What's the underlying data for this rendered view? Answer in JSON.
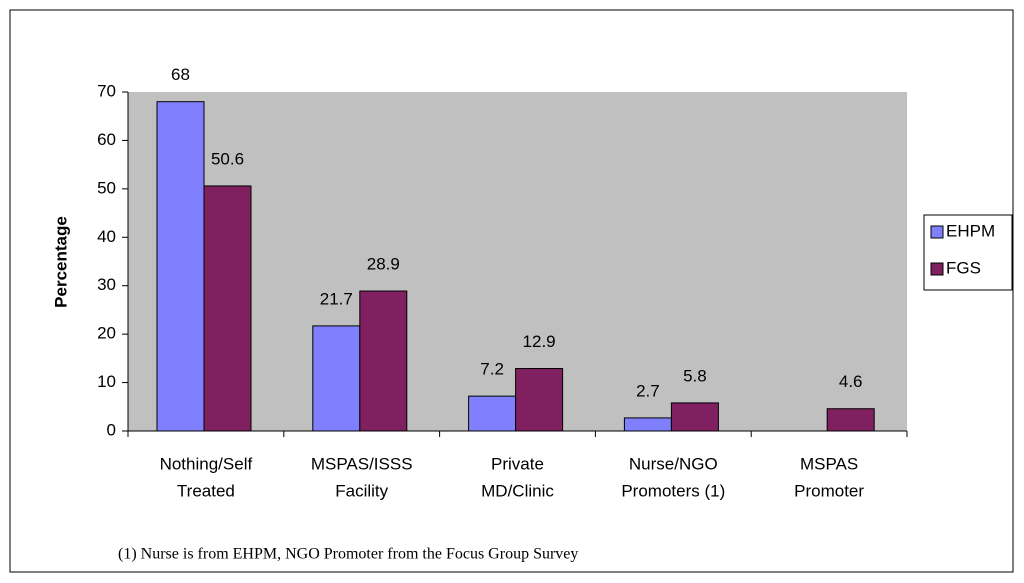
{
  "chart_data": {
    "type": "bar",
    "y_label": "Percentage",
    "categories": [
      [
        "Nothing/Self",
        "Treated"
      ],
      [
        "MSPAS/ISSS",
        "Facility"
      ],
      [
        "Private",
        "MD/Clinic"
      ],
      [
        "Nurse/NGO",
        "Promoters (1)"
      ],
      [
        "MSPAS",
        "Promoter"
      ]
    ],
    "series": [
      {
        "name": "EHPM",
        "color": "#8080ff",
        "values": [
          68,
          21.7,
          7.2,
          2.7,
          null
        ]
      },
      {
        "name": "FGS",
        "color": "#802060",
        "values": [
          50.6,
          28.9,
          12.9,
          5.8,
          4.6
        ]
      }
    ],
    "ylim": [
      0,
      70
    ],
    "yticks": [
      0,
      10,
      20,
      30,
      40,
      50,
      60,
      70
    ],
    "grid": false,
    "legend": "right",
    "footnote": "(1) Nurse is from EHPM, NGO Promoter from the Focus Group Survey"
  }
}
